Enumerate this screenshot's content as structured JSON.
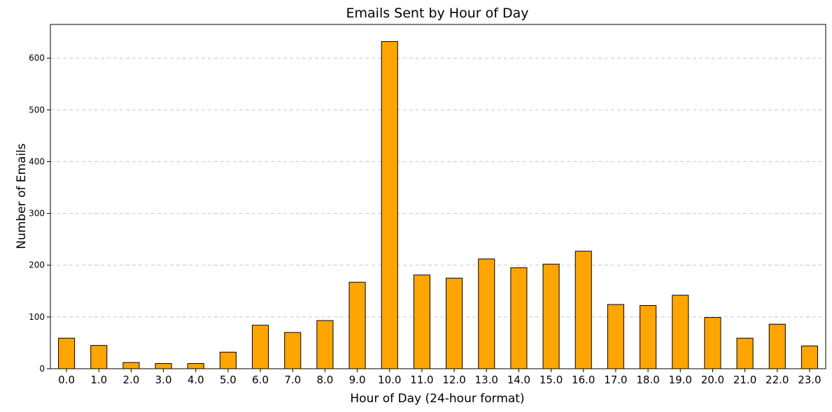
{
  "chart_data": {
    "type": "bar",
    "title": "Emails Sent by Hour of Day",
    "xlabel": "Hour of Day (24-hour format)",
    "ylabel": "Number of Emails",
    "categories": [
      "0.0",
      "1.0",
      "2.0",
      "3.0",
      "4.0",
      "5.0",
      "6.0",
      "7.0",
      "8.0",
      "9.0",
      "10.0",
      "11.0",
      "12.0",
      "13.0",
      "14.0",
      "15.0",
      "16.0",
      "17.0",
      "18.0",
      "19.0",
      "20.0",
      "21.0",
      "22.0",
      "23.0"
    ],
    "values": [
      59,
      45,
      12,
      10,
      10,
      32,
      84,
      70,
      93,
      167,
      632,
      181,
      175,
      212,
      195,
      202,
      227,
      124,
      122,
      142,
      99,
      59,
      86,
      44
    ],
    "ylim": [
      0,
      665
    ],
    "yticks": [
      0,
      100,
      200,
      300,
      400,
      500,
      600
    ],
    "ytick_labels": [
      "0",
      "100",
      "200",
      "300",
      "400",
      "500",
      "600"
    ],
    "grid": "y-dashed",
    "bar_color": "#ffa500",
    "edge_color": "#000000"
  }
}
